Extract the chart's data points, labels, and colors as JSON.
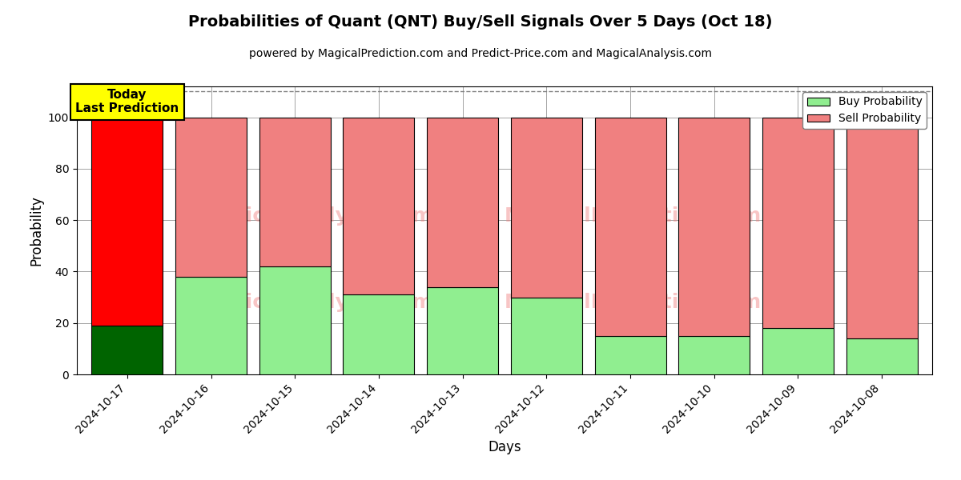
{
  "title": "Probabilities of Quant (QNT) Buy/Sell Signals Over 5 Days (Oct 18)",
  "subtitle": "powered by MagicalPrediction.com and Predict-Price.com and MagicalAnalysis.com",
  "xlabel": "Days",
  "ylabel": "Probability",
  "dates": [
    "2024-10-17",
    "2024-10-16",
    "2024-10-15",
    "2024-10-14",
    "2024-10-13",
    "2024-10-12",
    "2024-10-11",
    "2024-10-10",
    "2024-10-09",
    "2024-10-08"
  ],
  "buy_probs": [
    19,
    38,
    42,
    31,
    34,
    30,
    15,
    15,
    18,
    14
  ],
  "sell_probs": [
    81,
    62,
    58,
    69,
    66,
    70,
    85,
    85,
    82,
    86
  ],
  "buy_color_today": "#006400",
  "sell_color_today": "#ff0000",
  "buy_color_rest": "#90ee90",
  "sell_color_rest": "#f08080",
  "ylim": [
    0,
    112
  ],
  "yticks": [
    0,
    20,
    40,
    60,
    80,
    100
  ],
  "dashed_line_y": 110,
  "today_label": "Today\nLast Prediction",
  "today_label_bg": "#ffff00",
  "legend_buy_label": "Buy Probability",
  "legend_sell_label": "Sell Probability",
  "bar_width": 0.85,
  "figsize": [
    12,
    6
  ],
  "dpi": 100
}
